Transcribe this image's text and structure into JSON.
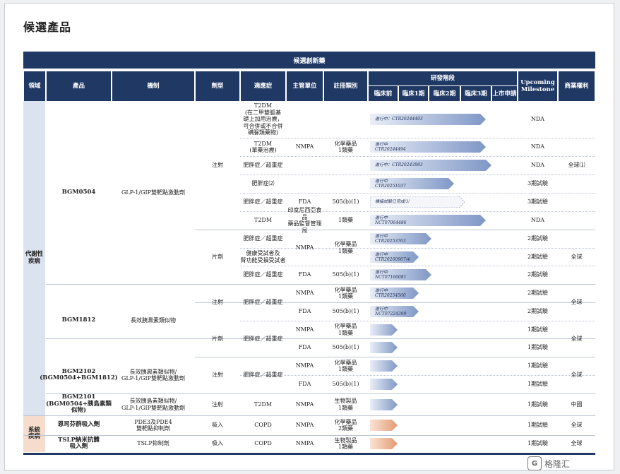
{
  "page_title": "候選產品",
  "table": {
    "group_header": "候選創新藥",
    "headers": {
      "area": "領域",
      "product": "產品",
      "mechanism": "機制",
      "formulation": "劑型",
      "indication": "適應症",
      "regulator": "主管單位",
      "registration": "註冊類別",
      "stage_group": "研發階段",
      "milestone": "Upcoming\nMilestone",
      "rights": "商業權利"
    },
    "stages": [
      "臨床前",
      "臨床1期",
      "臨床2期",
      "臨床3期",
      "上市申請"
    ],
    "areas": [
      "代謝性\n疾病",
      "系統\n疾病"
    ],
    "products": [
      {
        "name": "BGM0504",
        "mechanism": "GLP-1/GIP雙靶點激動劑"
      },
      {
        "name": "BGM1812",
        "mechanism": "長效胰澱素類似物"
      },
      {
        "name": "BGM2102\n(BGM0504+BGM1812)",
        "mechanism": "長效胰澱素類似物/\nGLP-1/GIP雙靶點激動劑"
      },
      {
        "name": "BGM2101\n(BGM0504+胰島素類似物)",
        "mechanism": "長效胰島素類似物/\nGLP-1/GIP雙靶點激動劑"
      },
      {
        "name": "恩司芬群吸入劑",
        "mechanism": "PDE3及PDE4\n雙靶點抑制劑"
      },
      {
        "name": "TSLP納米抗體\n吸入劑",
        "mechanism": "TSLP抑制劑"
      }
    ],
    "formulations": [
      "注射",
      "片劑",
      "注射",
      "片劑",
      "注射",
      "注射",
      "吸入",
      "吸入"
    ],
    "rights": [
      "全球⑴",
      "全球",
      "全球",
      "全球",
      "全球",
      "中國",
      "全球",
      "全球"
    ],
    "rows": [
      {
        "indication": "T2DM\n(在二甲雙胍基\n礎上加用治療，\n可合併或不合併\n磺脲類藥物)",
        "regulator": "",
        "registration": "",
        "bar_label": "進行中：CTR20244493",
        "milestone": "NDA"
      },
      {
        "indication": "T2DM\n(單藥治療)",
        "regulator": "NMPA",
        "registration": "化學藥品\n1類藥",
        "bar_label": "進行中\nCTR20244494",
        "milestone": "NDA"
      },
      {
        "indication": "肥胖症／超重症",
        "regulator": "",
        "registration": "",
        "bar_label": "進行中：CTR20243983",
        "milestone": "NDA"
      },
      {
        "indication": "肥胖症⑵",
        "regulator": "",
        "registration": "",
        "bar_label": "進行中\nCTR20251037",
        "milestone": "3期試驗"
      },
      {
        "indication": "肥胖症／超重症",
        "regulator": "FDA",
        "registration": "505(b)(1)",
        "bar_label": "橋接試驗已完成⑶",
        "milestone": "3期試驗"
      },
      {
        "indication": "T2DM",
        "regulator": "印度尼西亞食品\n藥品監督管理局",
        "registration": "1類藥",
        "bar_label": "進行中\nNCT07064486",
        "milestone": "NDA"
      },
      {
        "indication": "肥胖症／超重症",
        "regulator": "",
        "registration": "",
        "bar_label": "進行中\nCTR20253763",
        "milestone": "2期試驗"
      },
      {
        "indication": "健康受試者及\n腎功能受損受試者",
        "regulator": "NMPA",
        "registration": "化學藥品\n1類藥",
        "bar_label": "進行中\nCTR20260967⑷",
        "milestone": "2期試驗"
      },
      {
        "indication": "肥胖症／超重症",
        "regulator": "FDA",
        "registration": "505(b)(1)",
        "bar_label": "進行中\nNCT07166081",
        "milestone": "2期試驗"
      },
      {
        "indication": "",
        "regulator": "NMPA",
        "registration": "化學藥品\n1類藥",
        "bar_label": "進行中\nCTR20254560",
        "milestone": "2期試驗"
      },
      {
        "indication": "",
        "regulator": "FDA",
        "registration": "505(b)(1)",
        "bar_label": "進行中\nNCT07224399",
        "milestone": "2期試驗"
      },
      {
        "indication": "",
        "regulator": "NMPA",
        "registration": "化學藥品\n1類藥",
        "bar_label": "",
        "milestone": "1期試驗"
      },
      {
        "indication": "",
        "regulator": "FDA",
        "registration": "505(b)(1)",
        "bar_label": "",
        "milestone": "1期試驗"
      },
      {
        "indication": "",
        "regulator": "NMPA",
        "registration": "化學藥品\n1類藥",
        "bar_label": "",
        "milestone": "1期試驗"
      },
      {
        "indication": "",
        "regulator": "FDA",
        "registration": "505(b)(1)",
        "bar_label": "",
        "milestone": "1期試驗"
      },
      {
        "indication": "T2DM",
        "regulator": "NMPA",
        "registration": "生物製品\n1類藥",
        "bar_label": "",
        "milestone": "1期試驗"
      },
      {
        "indication": "COPD",
        "regulator": "NMPA",
        "registration": "化學藥品\n2類藥",
        "bar_label": "",
        "milestone": "1期試驗"
      },
      {
        "indication": "COPD",
        "regulator": "NMPA",
        "registration": "生物製品\n1類藥",
        "bar_label": "",
        "milestone": "1期試驗"
      }
    ],
    "merged_indications": [
      "肥胖症／超重症",
      "肥胖症／超重症",
      "肥胖症／超重症"
    ]
  },
  "watermark": "格隆汇",
  "colors": {
    "header": "#1f3864",
    "metabolic_bg": "#dbe3ef",
    "system_bg": "#f6dccc",
    "bar_blue": "#8fa6d0",
    "bar_orange": "#e8a57f"
  }
}
